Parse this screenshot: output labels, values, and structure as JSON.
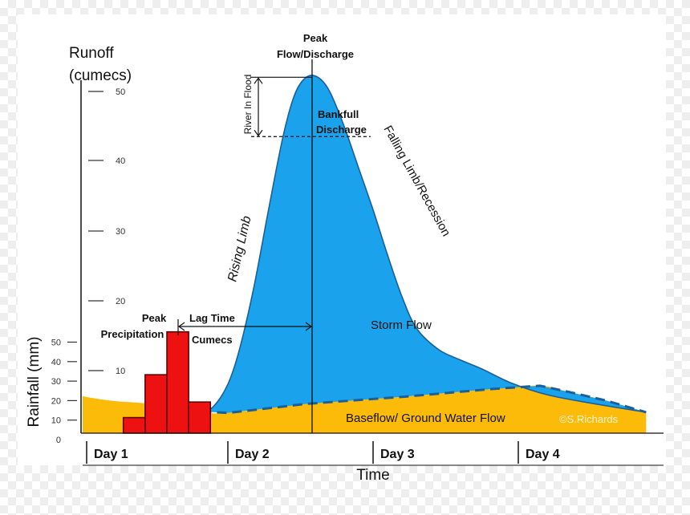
{
  "chart_data": {
    "type": "area",
    "title": "",
    "runoff_axis": {
      "label_line1": "Runoff",
      "label_line2": "(cumecs)",
      "ticks": [
        10,
        20,
        30,
        40,
        50
      ],
      "range": [
        0,
        55
      ]
    },
    "rainfall_axis": {
      "label": "Rainfall (mm)",
      "ticks": [
        0,
        10,
        20,
        30,
        40,
        50
      ],
      "range": [
        0,
        50
      ]
    },
    "xlabel": "Time",
    "x_range": [
      0,
      4
    ],
    "days": [
      "Day 1",
      "Day 2",
      "Day 3",
      "Day 4"
    ],
    "rainfall_bars": [
      {
        "x0": 0.28,
        "x1": 0.43,
        "value": 8
      },
      {
        "x0": 0.43,
        "x1": 0.58,
        "value": 30
      },
      {
        "x0": 0.58,
        "x1": 0.73,
        "value": 52
      },
      {
        "x0": 0.73,
        "x1": 0.88,
        "value": 16
      }
    ],
    "storm_hydrograph": [
      [
        0.82,
        3.1
      ],
      [
        0.9,
        3.8
      ],
      [
        1.0,
        7
      ],
      [
        1.08,
        12
      ],
      [
        1.18,
        21
      ],
      [
        1.28,
        32
      ],
      [
        1.38,
        42.5
      ],
      [
        1.46,
        48.5
      ],
      [
        1.54,
        51
      ],
      [
        1.62,
        51
      ],
      [
        1.7,
        49
      ],
      [
        1.8,
        44
      ],
      [
        1.9,
        38
      ],
      [
        2.0,
        32
      ],
      [
        2.1,
        25.5
      ],
      [
        2.2,
        19.5
      ],
      [
        2.3,
        15
      ],
      [
        2.45,
        12
      ],
      [
        2.6,
        10.5
      ],
      [
        2.75,
        9.2
      ],
      [
        2.95,
        7.2
      ],
      [
        3.2,
        5.5
      ],
      [
        3.5,
        4.3
      ],
      [
        3.88,
        3
      ]
    ],
    "baseflow": [
      [
        0,
        5.3
      ],
      [
        0.08,
        5
      ],
      [
        0.22,
        4.6
      ],
      [
        0.42,
        4.3
      ],
      [
        0.55,
        3.9
      ],
      [
        0.82,
        3.1
      ],
      [
        1.0,
        2.9
      ],
      [
        1.54,
        4.2
      ],
      [
        2.2,
        5.2
      ],
      [
        2.8,
        6.3
      ],
      [
        3.15,
        6.8
      ],
      [
        3.35,
        5.9
      ],
      [
        3.6,
        4.7
      ],
      [
        3.88,
        3
      ]
    ],
    "peak_flow_x": 1.58,
    "bankfull_value": 42.5,
    "annotations": {
      "peak_flow_line1": "Peak",
      "peak_flow_line2": "Flow/Discharge",
      "river_in_flood": "River In Flood",
      "bankfull_line1": "Bankfull",
      "bankfull_line2": "Discharge",
      "falling_limb": "Falling Limb/Recession",
      "rising_limb": "Rising Limb",
      "storm_flow": "Storm Flow",
      "baseflow": "Baseflow/ Ground Water Flow",
      "peak_precip_line1": "Peak",
      "peak_precip_line2": "Precipitation",
      "lag_time": "Lag Time",
      "cumecs": "Cumecs",
      "credit": "©S.Richards"
    },
    "colors": {
      "storm_flow": "#1aa3ec",
      "baseflow": "#fcbb08",
      "rainfall": "#ee1111",
      "outline": "#1a5f9a"
    }
  }
}
